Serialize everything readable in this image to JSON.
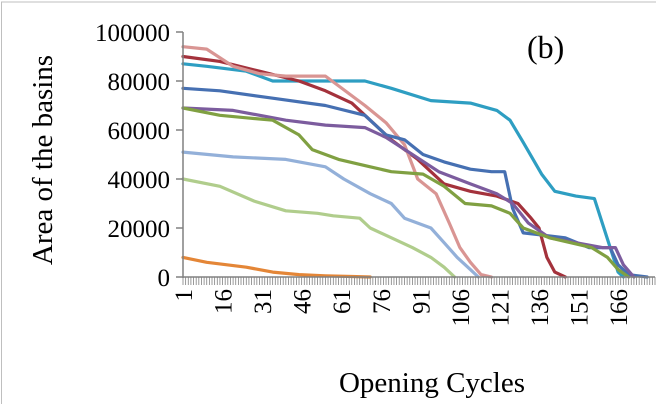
{
  "chart_data": {
    "type": "line",
    "title": "",
    "panel_label": "(b)",
    "xlabel": "Opening Cycles",
    "ylabel": "Area of the basins",
    "xlim": [
      1,
      180
    ],
    "ylim": [
      0,
      100000
    ],
    "grid": false,
    "legend": "none",
    "x_tick_labels": [
      "1",
      "16",
      "31",
      "46",
      "61",
      "76",
      "91",
      "106",
      "121",
      "136",
      "151",
      "166"
    ],
    "y_tick_labels": [
      "0",
      "20000",
      "40000",
      "60000",
      "80000",
      "100000"
    ],
    "series": [
      {
        "color": "#2e9ec2",
        "points": [
          [
            1,
            87000
          ],
          [
            10,
            86000
          ],
          [
            25,
            84000
          ],
          [
            35,
            80000
          ],
          [
            50,
            80000
          ],
          [
            70,
            80000
          ],
          [
            80,
            77000
          ],
          [
            95,
            72000
          ],
          [
            110,
            71000
          ],
          [
            120,
            68000
          ],
          [
            125,
            64000
          ],
          [
            130,
            55000
          ],
          [
            137,
            42000
          ],
          [
            142,
            35000
          ],
          [
            150,
            33000
          ],
          [
            157,
            32000
          ],
          [
            160,
            22000
          ],
          [
            163,
            12000
          ],
          [
            166,
            2000
          ],
          [
            168,
            0
          ]
        ]
      },
      {
        "color": "#a4323c",
        "points": [
          [
            1,
            90000
          ],
          [
            15,
            88000
          ],
          [
            30,
            84000
          ],
          [
            45,
            80000
          ],
          [
            55,
            76000
          ],
          [
            65,
            71000
          ],
          [
            72,
            64000
          ],
          [
            80,
            56000
          ],
          [
            90,
            48000
          ],
          [
            100,
            38000
          ],
          [
            110,
            35000
          ],
          [
            120,
            33000
          ],
          [
            128,
            30000
          ],
          [
            133,
            24000
          ],
          [
            136,
            20000
          ],
          [
            139,
            8000
          ],
          [
            142,
            2000
          ],
          [
            146,
            0
          ]
        ]
      },
      {
        "color": "#d99593",
        "points": [
          [
            1,
            94000
          ],
          [
            10,
            93000
          ],
          [
            20,
            86000
          ],
          [
            30,
            83000
          ],
          [
            40,
            82000
          ],
          [
            55,
            82000
          ],
          [
            60,
            78000
          ],
          [
            70,
            70000
          ],
          [
            78,
            63000
          ],
          [
            85,
            54000
          ],
          [
            90,
            40000
          ],
          [
            97,
            34000
          ],
          [
            102,
            22000
          ],
          [
            106,
            12000
          ],
          [
            110,
            6000
          ],
          [
            114,
            1000
          ],
          [
            118,
            0
          ]
        ]
      },
      {
        "color": "#4670b2",
        "points": [
          [
            1,
            77000
          ],
          [
            15,
            76000
          ],
          [
            35,
            73000
          ],
          [
            55,
            70000
          ],
          [
            70,
            66000
          ],
          [
            78,
            58000
          ],
          [
            85,
            56000
          ],
          [
            92,
            50000
          ],
          [
            100,
            47000
          ],
          [
            110,
            44000
          ],
          [
            118,
            43000
          ],
          [
            123,
            43000
          ],
          [
            126,
            28000
          ],
          [
            130,
            18000
          ],
          [
            138,
            17000
          ],
          [
            146,
            16000
          ],
          [
            155,
            12000
          ],
          [
            163,
            12000
          ],
          [
            166,
            5000
          ],
          [
            170,
            1000
          ],
          [
            177,
            0
          ]
        ]
      },
      {
        "color": "#7c5c9e",
        "points": [
          [
            1,
            69000
          ],
          [
            20,
            68000
          ],
          [
            40,
            64000
          ],
          [
            55,
            62000
          ],
          [
            70,
            61000
          ],
          [
            78,
            57000
          ],
          [
            88,
            50000
          ],
          [
            98,
            43000
          ],
          [
            110,
            38000
          ],
          [
            120,
            34000
          ],
          [
            126,
            30000
          ],
          [
            132,
            22000
          ],
          [
            140,
            16000
          ],
          [
            150,
            14000
          ],
          [
            160,
            12000
          ],
          [
            165,
            12000
          ],
          [
            168,
            5000
          ],
          [
            172,
            0
          ]
        ]
      },
      {
        "color": "#80a042",
        "points": [
          [
            1,
            69000
          ],
          [
            15,
            66000
          ],
          [
            25,
            65000
          ],
          [
            35,
            64000
          ],
          [
            45,
            58000
          ],
          [
            50,
            52000
          ],
          [
            60,
            48000
          ],
          [
            72,
            45000
          ],
          [
            80,
            43000
          ],
          [
            92,
            42000
          ],
          [
            100,
            37000
          ],
          [
            108,
            30000
          ],
          [
            118,
            29000
          ],
          [
            125,
            26000
          ],
          [
            130,
            20000
          ],
          [
            140,
            16000
          ],
          [
            148,
            14000
          ],
          [
            156,
            12000
          ],
          [
            162,
            8000
          ],
          [
            166,
            3000
          ],
          [
            170,
            0
          ]
        ]
      },
      {
        "color": "#93b0d9",
        "points": [
          [
            1,
            51000
          ],
          [
            20,
            49000
          ],
          [
            40,
            48000
          ],
          [
            55,
            45000
          ],
          [
            62,
            40000
          ],
          [
            72,
            34000
          ],
          [
            80,
            30000
          ],
          [
            85,
            24000
          ],
          [
            95,
            20000
          ],
          [
            100,
            14000
          ],
          [
            105,
            8000
          ],
          [
            110,
            3000
          ],
          [
            113,
            0
          ]
        ]
      },
      {
        "color": "#b0cd8c",
        "points": [
          [
            1,
            40000
          ],
          [
            15,
            37000
          ],
          [
            28,
            31000
          ],
          [
            40,
            27000
          ],
          [
            52,
            26000
          ],
          [
            58,
            25000
          ],
          [
            68,
            24000
          ],
          [
            72,
            20000
          ],
          [
            78,
            17000
          ],
          [
            88,
            12000
          ],
          [
            95,
            8000
          ],
          [
            100,
            4000
          ],
          [
            104,
            0
          ]
        ]
      },
      {
        "color": "#e48637",
        "points": [
          [
            1,
            8000
          ],
          [
            10,
            6000
          ],
          [
            25,
            4000
          ],
          [
            35,
            2000
          ],
          [
            45,
            1000
          ],
          [
            55,
            500
          ],
          [
            65,
            200
          ],
          [
            72,
            0
          ]
        ]
      }
    ]
  }
}
